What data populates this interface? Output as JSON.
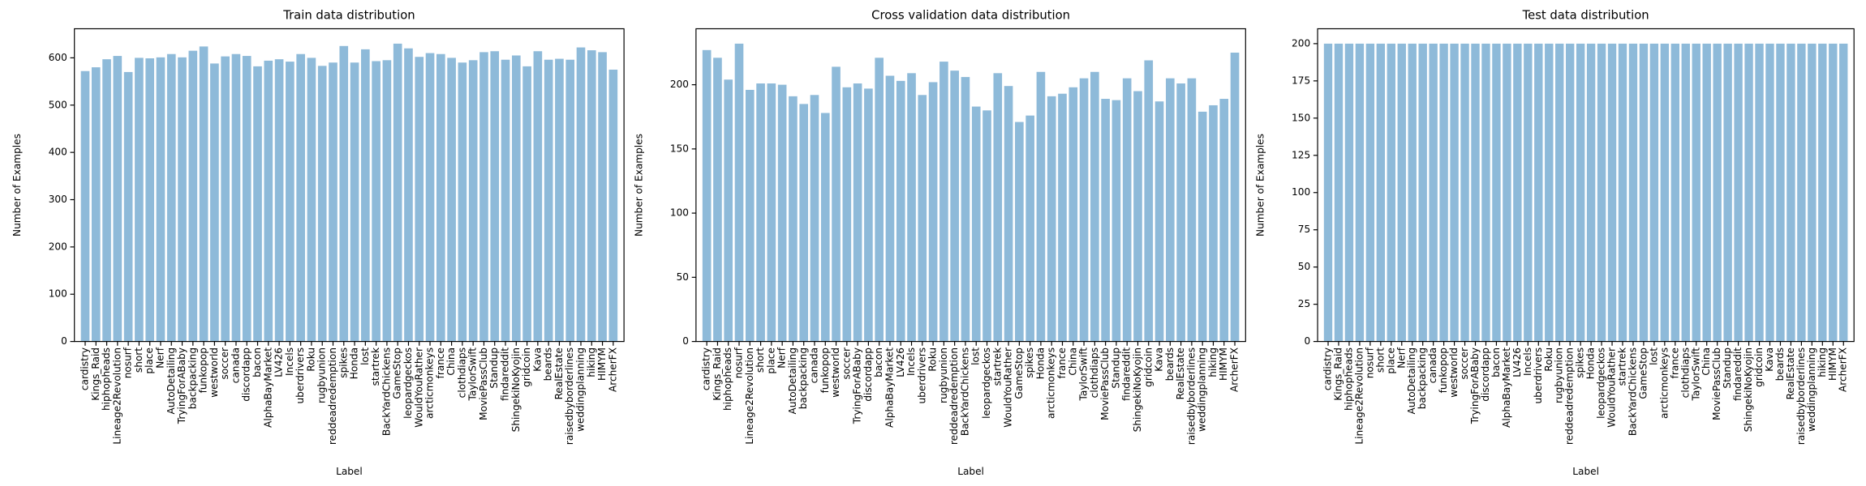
{
  "chart_data": [
    {
      "type": "bar",
      "title": "Train data distribution",
      "xlabel": "Label",
      "ylabel": "Number of Examples",
      "color": "#8ebad9",
      "categories": [
        "cardistry",
        "Kings_Raid",
        "hiphopheads",
        "Lineage2Revolution",
        "nosurf",
        "short",
        "place",
        "Nerf",
        "AutoDetailing",
        "TryingForABaby",
        "backpacking",
        "funkopop",
        "westworld",
        "soccer",
        "canada",
        "discordapp",
        "bacon",
        "AlphaBayMarket",
        "LV426",
        "Incels",
        "uberdrivers",
        "Roku",
        "rugbyunion",
        "reddeadredemption",
        "spikes",
        "Honda",
        "lost",
        "startrek",
        "BackYardChickens",
        "GameStop",
        "leopardgeckos",
        "WouldYouRather",
        "arcticmonkeys",
        "france",
        "China",
        "clothdiaps",
        "TaylorSwift",
        "MoviePassClub",
        "Standup",
        "findareddit",
        "ShingekiNoKyojin",
        "gridcoin",
        "Kava",
        "beards",
        "RealEstate",
        "raisedbyborderlines",
        "weddingplanning",
        "hiking",
        "HIMYM",
        "ArcherFX"
      ],
      "values": [
        572,
        580,
        597,
        604,
        570,
        600,
        599,
        601,
        608,
        601,
        615,
        624,
        588,
        603,
        608,
        604,
        582,
        594,
        597,
        592,
        608,
        600,
        583,
        590,
        625,
        590,
        618,
        593,
        595,
        630,
        620,
        602,
        610,
        608,
        600,
        590,
        595,
        612,
        614,
        596,
        605,
        582,
        614,
        596,
        598,
        596,
        622,
        616,
        612,
        575
      ],
      "ylim": [
        0,
        661.5
      ],
      "yticks": [
        0,
        100,
        200,
        300,
        400,
        500,
        600
      ]
    },
    {
      "type": "bar",
      "title": "Cross validation data distribution",
      "xlabel": "Label",
      "ylabel": "Number of Examples",
      "color": "#8ebad9",
      "categories": [
        "cardistry",
        "Kings_Raid",
        "hiphopheads",
        "nosurf",
        "Lineage2Revolution",
        "short",
        "place",
        "Nerf",
        "AutoDetailing",
        "backpacking",
        "canada",
        "funkopop",
        "westworld",
        "soccer",
        "TryingForABaby",
        "discordapp",
        "bacon",
        "AlphaBayMarket",
        "LV426",
        "Incels",
        "uberdrivers",
        "Roku",
        "rugbyunion",
        "reddeadredemption",
        "BackYardChickens",
        "lost",
        "leopardgeckos",
        "startrek",
        "WouldYouRather",
        "GameStop",
        "spikes",
        "Honda",
        "arcticmonkeys",
        "france",
        "China",
        "TaylorSwift",
        "clothdiaps",
        "MoviePassClub",
        "Standup",
        "findareddit",
        "ShingekiNoKyojin",
        "gridcoin",
        "Kava",
        "beards",
        "RealEstate",
        "raisedbyborderlines",
        "weddingplanning",
        "hiking",
        "HIMYM",
        "ArcherFX"
      ],
      "values": [
        227,
        221,
        204,
        232,
        196,
        201,
        201,
        200,
        191,
        185,
        192,
        178,
        214,
        198,
        201,
        197,
        221,
        207,
        203,
        209,
        192,
        202,
        218,
        211,
        206,
        183,
        180,
        209,
        199,
        171,
        176,
        210,
        191,
        193,
        198,
        205,
        210,
        189,
        188,
        205,
        195,
        219,
        187,
        205,
        201,
        205,
        179,
        184,
        189,
        225
      ],
      "ylim": [
        0,
        243.6
      ],
      "yticks": [
        0,
        50,
        100,
        150,
        200
      ]
    },
    {
      "type": "bar",
      "title": "Test data distribution",
      "xlabel": "Label",
      "ylabel": "Number of Examples",
      "color": "#8ebad9",
      "categories": [
        "cardistry",
        "Kings_Raid",
        "hiphopheads",
        "Lineage2Revolution",
        "nosurf",
        "short",
        "place",
        "Nerf",
        "AutoDetailing",
        "backpacking",
        "canada",
        "funkopop",
        "westworld",
        "soccer",
        "TryingForABaby",
        "discordapp",
        "bacon",
        "AlphaBayMarket",
        "LV426",
        "Incels",
        "uberdrivers",
        "Roku",
        "rugbyunion",
        "reddeadredemption",
        "spikes",
        "Honda",
        "leopardgeckos",
        "WouldYouRather",
        "startrek",
        "BackYardChickens",
        "GameStop",
        "lost",
        "arcticmonkeys",
        "france",
        "clothdiaps",
        "TaylorSwift",
        "China",
        "MoviePassClub",
        "Standup",
        "findareddit",
        "ShingekiNoKyojin",
        "gridcoin",
        "Kava",
        "beards",
        "RealEstate",
        "raisedbyborderlines",
        "weddingplanning",
        "hiking",
        "HIMYM",
        "ArcherFX"
      ],
      "values": [
        200,
        200,
        200,
        200,
        200,
        200,
        200,
        200,
        200,
        200,
        200,
        200,
        200,
        200,
        200,
        200,
        200,
        200,
        200,
        200,
        200,
        200,
        200,
        200,
        200,
        200,
        200,
        200,
        200,
        200,
        200,
        200,
        200,
        200,
        200,
        200,
        200,
        200,
        200,
        200,
        200,
        200,
        200,
        200,
        200,
        200,
        200,
        200,
        200,
        200
      ],
      "ylim": [
        0,
        210
      ],
      "yticks": [
        0,
        25,
        50,
        75,
        100,
        125,
        150,
        175,
        200
      ]
    }
  ]
}
